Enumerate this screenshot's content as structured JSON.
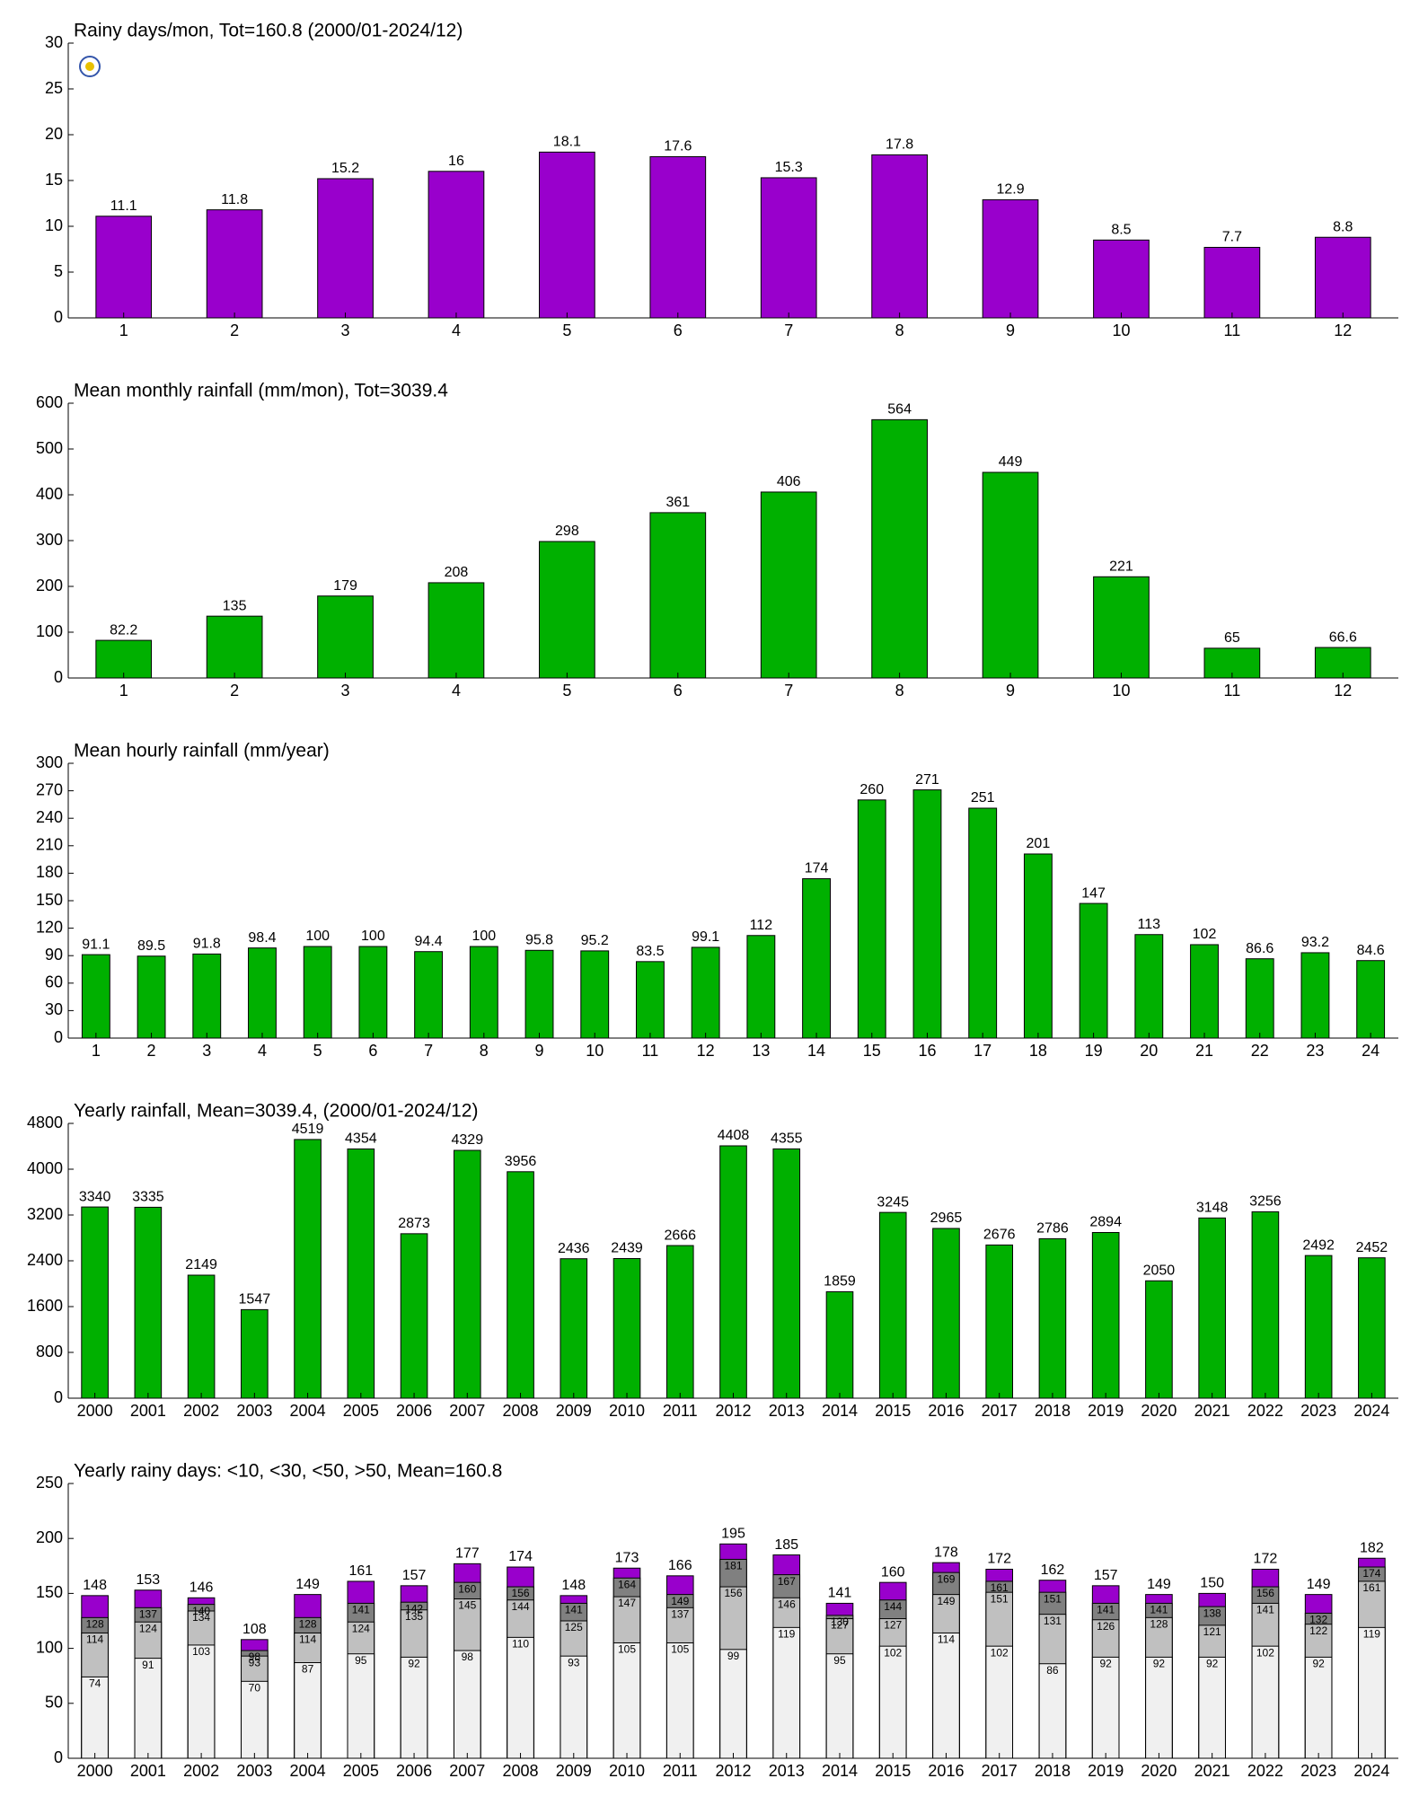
{
  "chart_data": [
    {
      "type": "bar",
      "title": "Rainy days/mon, Tot=160.8 (2000/01-2024/12)",
      "categories": [
        "1",
        "2",
        "3",
        "4",
        "5",
        "6",
        "7",
        "8",
        "9",
        "10",
        "11",
        "12"
      ],
      "values": [
        11.1,
        11.8,
        15.2,
        16,
        18.1,
        17.6,
        15.3,
        17.8,
        12.9,
        8.5,
        7.7,
        8.8
      ],
      "color": "#9900cc",
      "ylim": [
        0,
        30
      ],
      "yticks": [
        0,
        5,
        10,
        15,
        20,
        25,
        30
      ]
    },
    {
      "type": "bar",
      "title": "Mean monthly rainfall (mm/mon), Tot=3039.4",
      "categories": [
        "1",
        "2",
        "3",
        "4",
        "5",
        "6",
        "7",
        "8",
        "9",
        "10",
        "11",
        "12"
      ],
      "values": [
        82.2,
        135,
        179,
        208,
        298,
        361,
        406,
        564,
        449,
        221,
        65,
        66.6
      ],
      "color": "#00b000",
      "ylim": [
        0,
        600
      ],
      "yticks": [
        0,
        100,
        200,
        300,
        400,
        500,
        600
      ]
    },
    {
      "type": "bar",
      "title": "Mean hourly rainfall (mm/year)",
      "categories": [
        "1",
        "2",
        "3",
        "4",
        "5",
        "6",
        "7",
        "8",
        "9",
        "10",
        "11",
        "12",
        "13",
        "14",
        "15",
        "16",
        "17",
        "18",
        "19",
        "20",
        "21",
        "22",
        "23",
        "24"
      ],
      "values": [
        91.1,
        89.5,
        91.8,
        98.4,
        100,
        100,
        94.4,
        100,
        95.8,
        95.2,
        83.5,
        99.1,
        112,
        174,
        260,
        271,
        251,
        201,
        147,
        113,
        102,
        86.6,
        93.2,
        84.6
      ],
      "color": "#00b000",
      "ylim": [
        0,
        300
      ],
      "yticks": [
        0,
        30,
        60,
        90,
        120,
        150,
        180,
        210,
        240,
        270,
        300
      ]
    },
    {
      "type": "bar",
      "title": "Yearly rainfall, Mean=3039.4, (2000/01-2024/12)",
      "categories": [
        "2000",
        "2001",
        "2002",
        "2003",
        "2004",
        "2005",
        "2006",
        "2007",
        "2008",
        "2009",
        "2010",
        "2011",
        "2012",
        "2013",
        "2014",
        "2015",
        "2016",
        "2017",
        "2018",
        "2019",
        "2020",
        "2021",
        "2022",
        "2023",
        "2024"
      ],
      "values": [
        3340,
        3335,
        2149,
        1547,
        4519,
        4354,
        2873,
        4329,
        3956,
        2436,
        2439,
        2666,
        4408,
        4355,
        1859,
        3245,
        2965,
        2676,
        2786,
        2894,
        2050,
        3148,
        3256,
        2492,
        2452
      ],
      "color": "#00b000",
      "ylim": [
        0,
        4800
      ],
      "yticks": [
        0,
        800,
        1600,
        2400,
        3200,
        4000,
        4800
      ]
    },
    {
      "type": "overlap",
      "title": "Yearly rainy days: <10, <30, <50, >50, Mean=160.8",
      "categories": [
        "2000",
        "2001",
        "2002",
        "2003",
        "2004",
        "2005",
        "2006",
        "2007",
        "2008",
        "2009",
        "2010",
        "2011",
        "2012",
        "2013",
        "2014",
        "2015",
        "2016",
        "2017",
        "2018",
        "2019",
        "2020",
        "2021",
        "2022",
        "2023",
        "2024"
      ],
      "series": [
        {
          "color": "#9900cc",
          "values": [
            148,
            153,
            146,
            108,
            149,
            161,
            157,
            177,
            174,
            148,
            173,
            166,
            195,
            185,
            141,
            160,
            178,
            172,
            162,
            157,
            149,
            150,
            172,
            149,
            182
          ]
        },
        {
          "color": "#808080",
          "values": [
            128,
            137,
            140,
            98,
            128,
            141,
            142,
            160,
            156,
            141,
            164,
            149,
            181,
            167,
            130,
            144,
            169,
            161,
            151,
            141,
            141,
            138,
            156,
            132,
            174
          ]
        },
        {
          "color": "#c0c0c0",
          "values": [
            114,
            124,
            134,
            93,
            114,
            124,
            135,
            145,
            144,
            125,
            147,
            137,
            156,
            146,
            127,
            127,
            149,
            151,
            131,
            126,
            128,
            121,
            141,
            122,
            161
          ]
        },
        {
          "color": "#f0f0f0",
          "values": [
            74,
            91,
            103,
            70,
            87,
            95,
            92,
            98,
            110,
            93,
            105,
            105,
            99,
            119,
            95,
            102,
            114,
            102,
            86,
            92,
            92,
            92,
            102,
            92,
            119
          ]
        }
      ],
      "ylim": [
        0,
        250
      ],
      "yticks": [
        0,
        50,
        100,
        150,
        200,
        250
      ]
    }
  ]
}
